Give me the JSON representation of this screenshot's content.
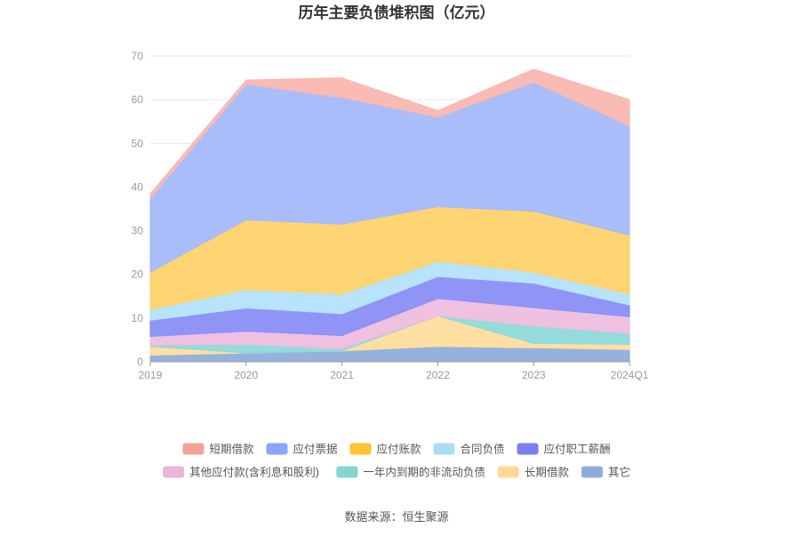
{
  "chart_data": {
    "type": "area",
    "stacked": true,
    "title": "历年主要负债堆积图（亿元）",
    "xlabel": "",
    "ylabel": "",
    "categories": [
      "2019",
      "2020",
      "2021",
      "2022",
      "2023",
      "2024Q1"
    ],
    "ylim": [
      0,
      70
    ],
    "yticks": [
      0,
      10,
      20,
      30,
      40,
      50,
      60,
      70
    ],
    "grid": true,
    "legend_position": "bottom",
    "series": [
      {
        "name": "其它",
        "color": "#8faedc",
        "values": [
          1.5,
          2.0,
          2.5,
          3.5,
          3.2,
          2.8
        ]
      },
      {
        "name": "长期借款",
        "color": "#ffdd9d",
        "values": [
          2.0,
          0.0,
          0.0,
          7.0,
          1.0,
          1.2
        ]
      },
      {
        "name": "一年内到期的非流动负债",
        "color": "#8ed9d9",
        "values": [
          0.3,
          2.0,
          0.5,
          0.0,
          4.0,
          2.5
        ]
      },
      {
        "name": "其他应付款(含利息和股利)",
        "color": "#eebdde",
        "values": [
          2.0,
          3.0,
          3.0,
          4.0,
          4.2,
          3.8
        ]
      },
      {
        "name": "应付职工薪酬",
        "color": "#8a8ef7",
        "values": [
          3.7,
          5.3,
          5.0,
          5.0,
          5.6,
          2.7
        ]
      },
      {
        "name": "合同负债",
        "color": "#b3e3fb",
        "values": [
          2.5,
          4.2,
          4.5,
          3.5,
          2.5,
          2.5
        ]
      },
      {
        "name": "应付账款",
        "color": "#ffd26a",
        "values": [
          8.5,
          16.0,
          16.0,
          12.5,
          14.0,
          13.5
        ]
      },
      {
        "name": "应付票据",
        "color": "#a4b9fb",
        "values": [
          17.0,
          31.0,
          29.0,
          20.5,
          29.5,
          25.0
        ]
      },
      {
        "name": "短期借款",
        "color": "#fab7b0",
        "values": [
          1.0,
          1.0,
          4.5,
          1.5,
          3.0,
          6.0
        ]
      }
    ],
    "legend_order": [
      "短期借款",
      "应付票据",
      "应付账款",
      "合同负债",
      "应付职工薪酬",
      "其他应付款(含利息和股利)",
      "一年内到期的非流动负债",
      "长期借款",
      "其它"
    ],
    "legend_colors": {
      "短期借款": "#f4a19a",
      "应付票据": "#8aa6f8",
      "应付账款": "#ffc233",
      "合同负债": "#a6defa",
      "应付职工薪酬": "#7a7ef2",
      "其他应付款(含利息和股利)": "#e8b6da",
      "一年内到期的非流动负债": "#86d4d4",
      "长期借款": "#ffd898",
      "其它": "#8facd8"
    }
  },
  "source": "数据来源：恒生聚源"
}
